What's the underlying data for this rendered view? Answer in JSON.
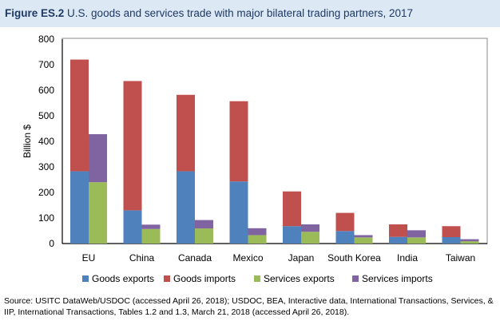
{
  "title_label": "Figure ES.2",
  "title_text": "U.S. goods and services trade with major bilateral trading partners, 2017",
  "source": "Source: USITC DataWeb/USDOC (accessed April 26, 2018); USDOC, BEA, Interactive data, International Transactions, Services, & IIP, International Transactions, Tables 1.2 and 1.3, March 21, 2018 (accessed April 26, 2018).",
  "chart_data": {
    "type": "bar",
    "stacked": true,
    "title": "U.S. goods and services trade with major bilateral trading partners, 2017",
    "ylabel": "Billion $",
    "ylim": [
      0,
      800
    ],
    "yticks": [
      0,
      100,
      200,
      300,
      400,
      500,
      600,
      700,
      800
    ],
    "categories": [
      "EU",
      "China",
      "Canada",
      "Mexico",
      "Japan",
      "South Korea",
      "India",
      "Taiwan"
    ],
    "series": [
      {
        "name": "Goods exports",
        "stack": "goods",
        "color": "#4f81bd",
        "values": [
          283,
          130,
          283,
          243,
          68,
          49,
          26,
          25
        ]
      },
      {
        "name": "Goods imports",
        "stack": "goods",
        "color": "#c0504d",
        "values": [
          437,
          506,
          299,
          314,
          136,
          71,
          49,
          43
        ]
      },
      {
        "name": "Services exports",
        "stack": "services",
        "color": "#9bbb59",
        "values": [
          240,
          57,
          59,
          33,
          46,
          24,
          24,
          9
        ]
      },
      {
        "name": "Services imports",
        "stack": "services",
        "color": "#8064a2",
        "values": [
          188,
          17,
          33,
          27,
          29,
          9,
          28,
          8
        ]
      }
    ],
    "legend": "bottom",
    "grid": false
  }
}
